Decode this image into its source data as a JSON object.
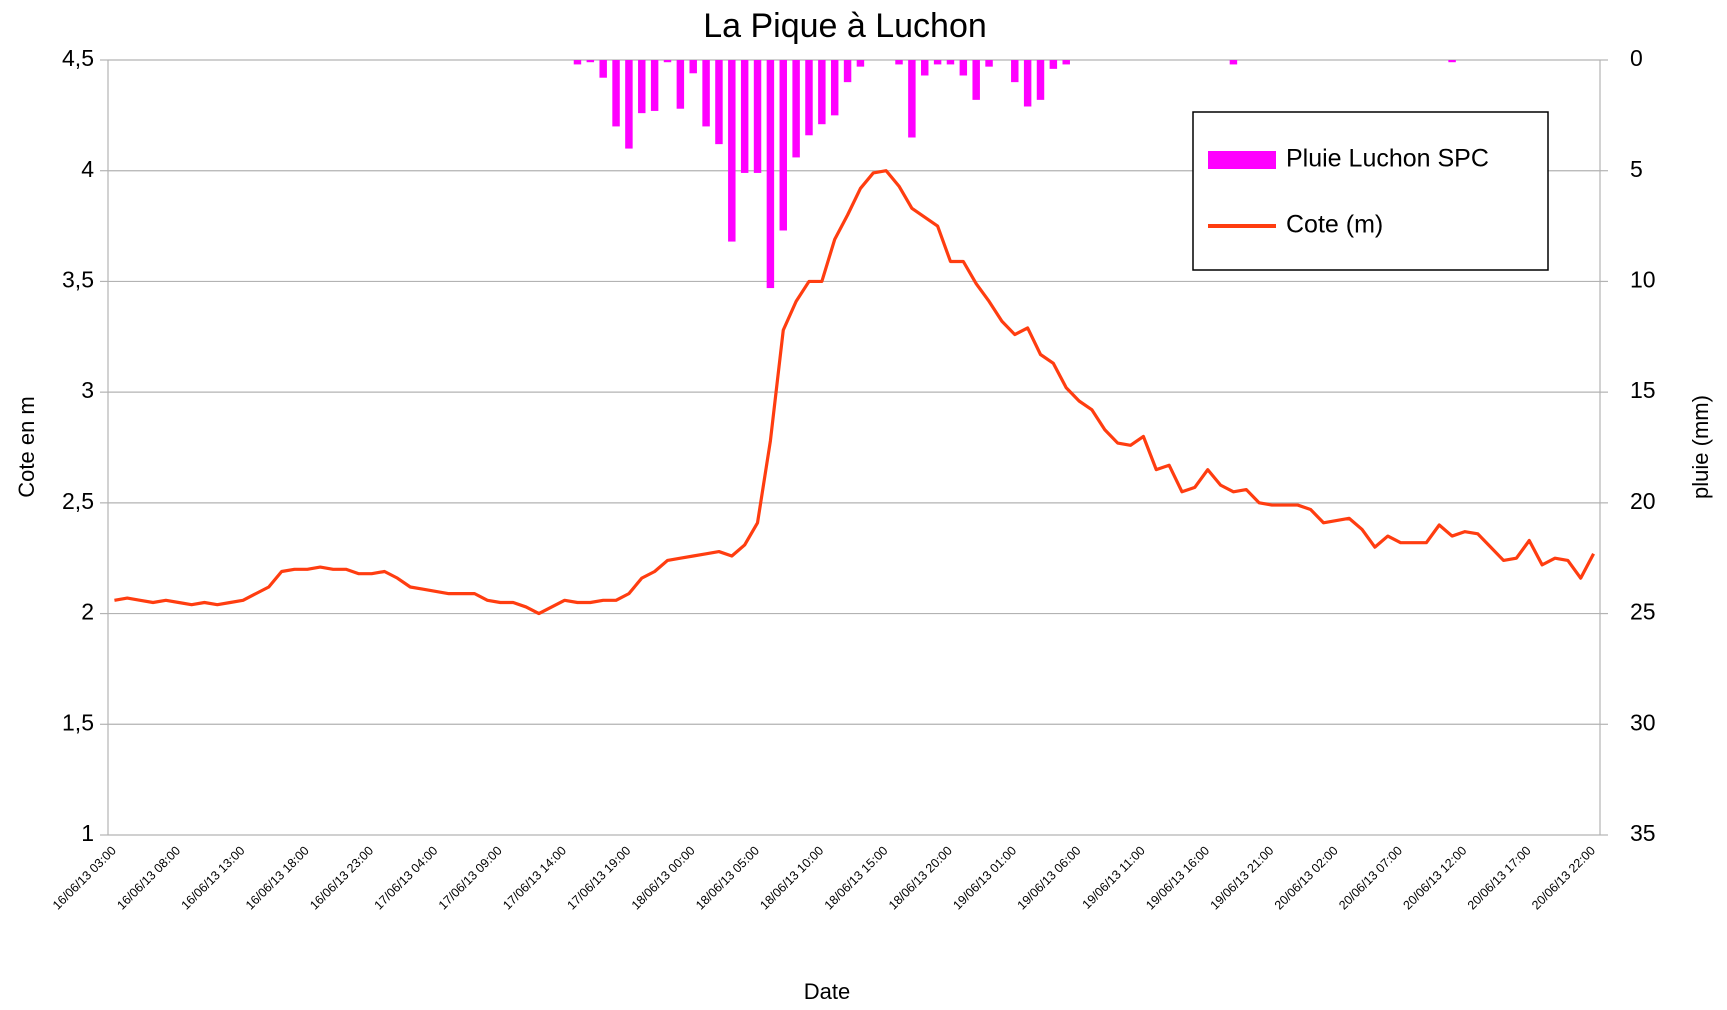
{
  "chart_data": {
    "type": "bar-line",
    "title": "La Pique à Luchon",
    "x_label": "Date",
    "y_label": "Cote en m",
    "y2_label": "pluie (mm)",
    "categories": [
      "16/06/13 03:00",
      null,
      null,
      null,
      null,
      "16/06/13 08:00",
      null,
      null,
      null,
      null,
      "16/06/13 13:00",
      null,
      null,
      null,
      null,
      "16/06/13 18:00",
      null,
      null,
      null,
      null,
      "16/06/13 23:00",
      null,
      null,
      null,
      null,
      "17/06/13 04:00",
      null,
      null,
      null,
      null,
      "17/06/13 09:00",
      null,
      null,
      null,
      null,
      "17/06/13 14:00",
      null,
      null,
      null,
      null,
      "17/06/13 19:00",
      null,
      null,
      null,
      null,
      "18/06/13 00:00",
      null,
      null,
      null,
      null,
      "18/06/13 05:00",
      null,
      null,
      null,
      null,
      "18/06/13 10:00",
      null,
      null,
      null,
      null,
      "18/06/13 15:00",
      null,
      null,
      null,
      null,
      "18/06/13 20:00",
      null,
      null,
      null,
      null,
      "19/06/13 01:00",
      null,
      null,
      null,
      null,
      "19/06/13 06:00",
      null,
      null,
      null,
      null,
      "19/06/13 11:00",
      null,
      null,
      null,
      null,
      "19/06/13 16:00",
      null,
      null,
      null,
      null,
      "19/06/13 21:00",
      null,
      null,
      null,
      null,
      "20/06/13 02:00",
      null,
      null,
      null,
      null,
      "20/06/13 07:00",
      null,
      null,
      null,
      null,
      "20/06/13 12:00",
      null,
      null,
      null,
      null,
      "20/06/13 17:00",
      null,
      null,
      null,
      null,
      "20/06/13 22:00"
    ],
    "series": [
      {
        "name": "Pluie Luchon SPC",
        "type": "bar",
        "axis": "y2",
        "color": "#ff00ff",
        "values": [
          0,
          0,
          0,
          0,
          0,
          0,
          0,
          0,
          0,
          0,
          0,
          0,
          0,
          0,
          0,
          0,
          0,
          0,
          0,
          0,
          0,
          0,
          0,
          0,
          0,
          0,
          0,
          0,
          0,
          0,
          0,
          0,
          0,
          0,
          0,
          0,
          0.2,
          0.1,
          0.8,
          3,
          4,
          2.4,
          2.3,
          0.1,
          2.2,
          0.6,
          3,
          3.8,
          8.2,
          5.1,
          5.1,
          10.3,
          7.7,
          4.4,
          3.4,
          2.9,
          2.5,
          1,
          0.3,
          0,
          0,
          0.2,
          3.5,
          0.7,
          0.2,
          0.2,
          0.7,
          1.8,
          0.3,
          0,
          1,
          2.1,
          1.8,
          0.4,
          0.2,
          0,
          0,
          0,
          0,
          0,
          0,
          0,
          0,
          0,
          0,
          0,
          0,
          0.2,
          0,
          0,
          0,
          0,
          0,
          0,
          0,
          0,
          0,
          0,
          0,
          0,
          0,
          0,
          0,
          0,
          0.1,
          0,
          0,
          0,
          0,
          0,
          0,
          0,
          0,
          0,
          0,
          0
        ]
      },
      {
        "name": "Cote (m)",
        "type": "line",
        "color": "#ff3d10",
        "values": [
          2.06,
          2.07,
          2.06,
          2.05,
          2.06,
          2.05,
          2.04,
          2.05,
          2.04,
          2.05,
          2.06,
          2.09,
          2.12,
          2.19,
          2.2,
          2.2,
          2.21,
          2.2,
          2.2,
          2.18,
          2.18,
          2.19,
          2.16,
          2.12,
          2.11,
          2.1,
          2.09,
          2.09,
          2.09,
          2.06,
          2.05,
          2.05,
          2.03,
          2.0,
          2.03,
          2.06,
          2.05,
          2.05,
          2.06,
          2.06,
          2.09,
          2.16,
          2.19,
          2.24,
          2.25,
          2.26,
          2.27,
          2.28,
          2.26,
          2.31,
          2.41,
          2.78,
          3.28,
          3.41,
          3.5,
          3.5,
          3.69,
          3.8,
          3.92,
          3.99,
          4.0,
          3.93,
          3.83,
          3.79,
          3.75,
          3.59,
          3.59,
          3.49,
          3.41,
          3.32,
          3.26,
          3.29,
          3.17,
          3.13,
          3.02,
          2.96,
          2.92,
          2.83,
          2.77,
          2.76,
          2.8,
          2.65,
          2.67,
          2.55,
          2.57,
          2.65,
          2.58,
          2.55,
          2.56,
          2.5,
          2.49,
          2.49,
          2.49,
          2.47,
          2.41,
          2.42,
          2.43,
          2.38,
          2.3,
          2.35,
          2.32,
          2.32,
          2.32,
          2.4,
          2.35,
          2.37,
          2.36,
          2.3,
          2.24,
          2.25,
          2.33,
          2.22,
          2.25,
          2.24,
          2.16,
          2.27
        ]
      }
    ],
    "ylim": [
      1,
      4.5
    ],
    "yticks": [
      1,
      {
        "value": 1.5,
        "label": "1,5"
      },
      2,
      {
        "value": 2.5,
        "label": "2,5"
      },
      3,
      {
        "value": 3.5,
        "label": "3,5"
      },
      4,
      {
        "value": 4.5,
        "label": "4,5"
      }
    ],
    "y2lim": [
      35,
      0
    ],
    "y2ticks": [
      0,
      5,
      10,
      15,
      20,
      25,
      30,
      35
    ],
    "grid": true,
    "legend": "upper right"
  }
}
